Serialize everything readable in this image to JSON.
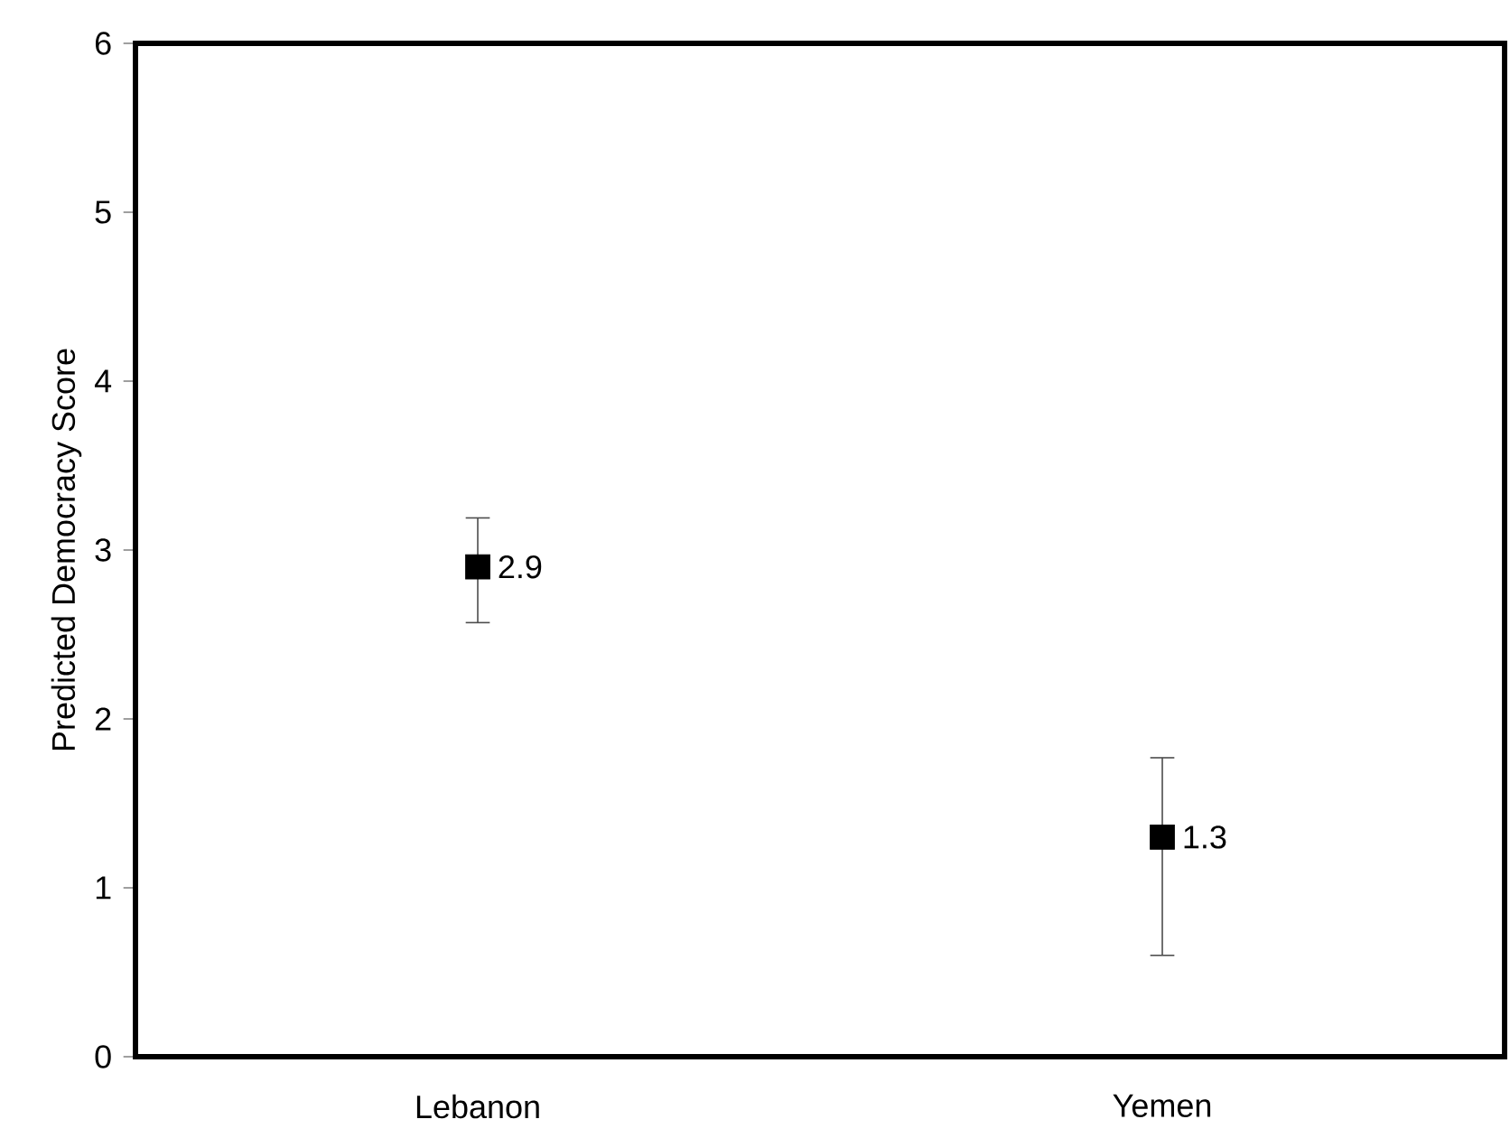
{
  "chart_data": {
    "type": "scatter",
    "ylabel": "Predicted Democracy Score",
    "categories": [
      "Lebanon",
      "Yemen"
    ],
    "values": [
      2.9,
      1.3
    ],
    "errors": [
      [
        2.57,
        3.19
      ],
      [
        0.6,
        1.77
      ]
    ],
    "color": "#000000",
    "marker": "square",
    "data_labels": true,
    "ylim": [
      0,
      6
    ],
    "yticks": [
      0,
      1,
      2,
      3,
      4,
      5,
      6
    ]
  }
}
